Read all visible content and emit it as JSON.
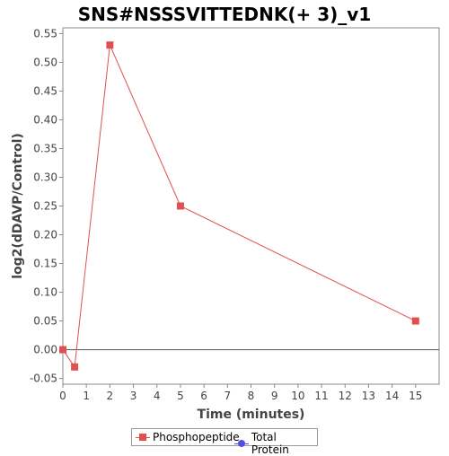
{
  "chart_data": {
    "type": "line",
    "title": "SNS#NSSSVITTEDNK(+ 3)_v1",
    "xlabel": "Time (minutes)",
    "ylabel": "log2(dDAVP/Control)",
    "xlim": [
      0,
      16
    ],
    "ylim": [
      -0.06,
      0.56
    ],
    "xticks": [
      0,
      1,
      2,
      3,
      4,
      5,
      6,
      7,
      8,
      9,
      10,
      11,
      12,
      13,
      14,
      15
    ],
    "yticks": [
      -0.05,
      0.0,
      0.05,
      0.1,
      0.15,
      0.2,
      0.25,
      0.3,
      0.35,
      0.4,
      0.45,
      0.5,
      0.55
    ],
    "ytick_labels": [
      "-0.05",
      "0.00",
      "0.05",
      "0.10",
      "0.15",
      "0.20",
      "0.25",
      "0.30",
      "0.35",
      "0.40",
      "0.45",
      "0.50",
      "0.55"
    ],
    "grid": false,
    "zero_line": true,
    "legend_position": "bottom",
    "series": [
      {
        "name": "Phosphopeptide",
        "color": "#e05050",
        "marker": "square",
        "x": [
          0,
          0.5,
          2,
          5,
          15
        ],
        "y": [
          0.0,
          -0.03,
          0.53,
          0.25,
          0.05
        ]
      },
      {
        "name": "Total Protein",
        "color": "#5050e0",
        "marker": "circle",
        "x": [],
        "y": []
      }
    ]
  }
}
